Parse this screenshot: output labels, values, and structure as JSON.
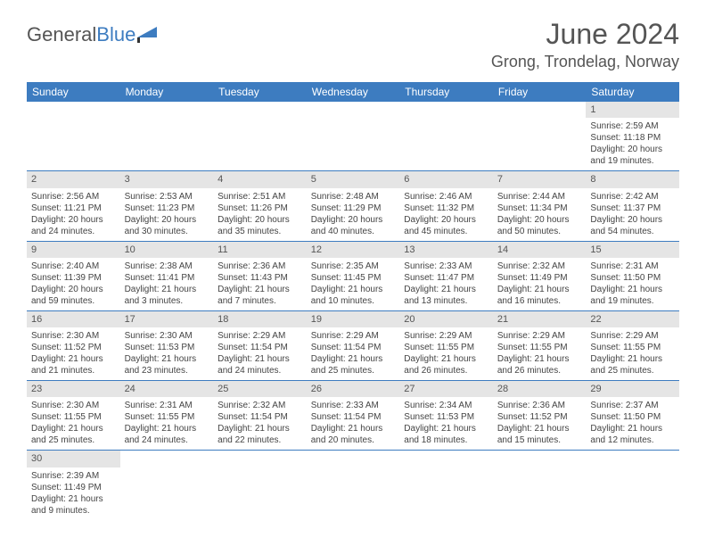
{
  "brand": {
    "name1": "General",
    "name2": "Blue"
  },
  "title": "June 2024",
  "location": "Grong, Trondelag, Norway",
  "day_headers": [
    "Sunday",
    "Monday",
    "Tuesday",
    "Wednesday",
    "Thursday",
    "Friday",
    "Saturday"
  ],
  "colors": {
    "header_bg": "#3d7cc0",
    "header_text": "#ffffff",
    "daynum_bg": "#e5e5e5",
    "border": "#3d7cc0",
    "title_text": "#555555"
  },
  "calendar": {
    "first_day_index": 6,
    "days": [
      {
        "n": 1,
        "sunrise": "2:59 AM",
        "sunset": "11:18 PM",
        "dl1": "20 hours",
        "dl2": "and 19 minutes."
      },
      {
        "n": 2,
        "sunrise": "2:56 AM",
        "sunset": "11:21 PM",
        "dl1": "20 hours",
        "dl2": "and 24 minutes."
      },
      {
        "n": 3,
        "sunrise": "2:53 AM",
        "sunset": "11:23 PM",
        "dl1": "20 hours",
        "dl2": "and 30 minutes."
      },
      {
        "n": 4,
        "sunrise": "2:51 AM",
        "sunset": "11:26 PM",
        "dl1": "20 hours",
        "dl2": "and 35 minutes."
      },
      {
        "n": 5,
        "sunrise": "2:48 AM",
        "sunset": "11:29 PM",
        "dl1": "20 hours",
        "dl2": "and 40 minutes."
      },
      {
        "n": 6,
        "sunrise": "2:46 AM",
        "sunset": "11:32 PM",
        "dl1": "20 hours",
        "dl2": "and 45 minutes."
      },
      {
        "n": 7,
        "sunrise": "2:44 AM",
        "sunset": "11:34 PM",
        "dl1": "20 hours",
        "dl2": "and 50 minutes."
      },
      {
        "n": 8,
        "sunrise": "2:42 AM",
        "sunset": "11:37 PM",
        "dl1": "20 hours",
        "dl2": "and 54 minutes."
      },
      {
        "n": 9,
        "sunrise": "2:40 AM",
        "sunset": "11:39 PM",
        "dl1": "20 hours",
        "dl2": "and 59 minutes."
      },
      {
        "n": 10,
        "sunrise": "2:38 AM",
        "sunset": "11:41 PM",
        "dl1": "21 hours",
        "dl2": "and 3 minutes."
      },
      {
        "n": 11,
        "sunrise": "2:36 AM",
        "sunset": "11:43 PM",
        "dl1": "21 hours",
        "dl2": "and 7 minutes."
      },
      {
        "n": 12,
        "sunrise": "2:35 AM",
        "sunset": "11:45 PM",
        "dl1": "21 hours",
        "dl2": "and 10 minutes."
      },
      {
        "n": 13,
        "sunrise": "2:33 AM",
        "sunset": "11:47 PM",
        "dl1": "21 hours",
        "dl2": "and 13 minutes."
      },
      {
        "n": 14,
        "sunrise": "2:32 AM",
        "sunset": "11:49 PM",
        "dl1": "21 hours",
        "dl2": "and 16 minutes."
      },
      {
        "n": 15,
        "sunrise": "2:31 AM",
        "sunset": "11:50 PM",
        "dl1": "21 hours",
        "dl2": "and 19 minutes."
      },
      {
        "n": 16,
        "sunrise": "2:30 AM",
        "sunset": "11:52 PM",
        "dl1": "21 hours",
        "dl2": "and 21 minutes."
      },
      {
        "n": 17,
        "sunrise": "2:30 AM",
        "sunset": "11:53 PM",
        "dl1": "21 hours",
        "dl2": "and 23 minutes."
      },
      {
        "n": 18,
        "sunrise": "2:29 AM",
        "sunset": "11:54 PM",
        "dl1": "21 hours",
        "dl2": "and 24 minutes."
      },
      {
        "n": 19,
        "sunrise": "2:29 AM",
        "sunset": "11:54 PM",
        "dl1": "21 hours",
        "dl2": "and 25 minutes."
      },
      {
        "n": 20,
        "sunrise": "2:29 AM",
        "sunset": "11:55 PM",
        "dl1": "21 hours",
        "dl2": "and 26 minutes."
      },
      {
        "n": 21,
        "sunrise": "2:29 AM",
        "sunset": "11:55 PM",
        "dl1": "21 hours",
        "dl2": "and 26 minutes."
      },
      {
        "n": 22,
        "sunrise": "2:29 AM",
        "sunset": "11:55 PM",
        "dl1": "21 hours",
        "dl2": "and 25 minutes."
      },
      {
        "n": 23,
        "sunrise": "2:30 AM",
        "sunset": "11:55 PM",
        "dl1": "21 hours",
        "dl2": "and 25 minutes."
      },
      {
        "n": 24,
        "sunrise": "2:31 AM",
        "sunset": "11:55 PM",
        "dl1": "21 hours",
        "dl2": "and 24 minutes."
      },
      {
        "n": 25,
        "sunrise": "2:32 AM",
        "sunset": "11:54 PM",
        "dl1": "21 hours",
        "dl2": "and 22 minutes."
      },
      {
        "n": 26,
        "sunrise": "2:33 AM",
        "sunset": "11:54 PM",
        "dl1": "21 hours",
        "dl2": "and 20 minutes."
      },
      {
        "n": 27,
        "sunrise": "2:34 AM",
        "sunset": "11:53 PM",
        "dl1": "21 hours",
        "dl2": "and 18 minutes."
      },
      {
        "n": 28,
        "sunrise": "2:36 AM",
        "sunset": "11:52 PM",
        "dl1": "21 hours",
        "dl2": "and 15 minutes."
      },
      {
        "n": 29,
        "sunrise": "2:37 AM",
        "sunset": "11:50 PM",
        "dl1": "21 hours",
        "dl2": "and 12 minutes."
      },
      {
        "n": 30,
        "sunrise": "2:39 AM",
        "sunset": "11:49 PM",
        "dl1": "21 hours",
        "dl2": "and 9 minutes."
      }
    ]
  },
  "labels": {
    "sunrise": "Sunrise:",
    "sunset": "Sunset:",
    "daylight": "Daylight:"
  }
}
